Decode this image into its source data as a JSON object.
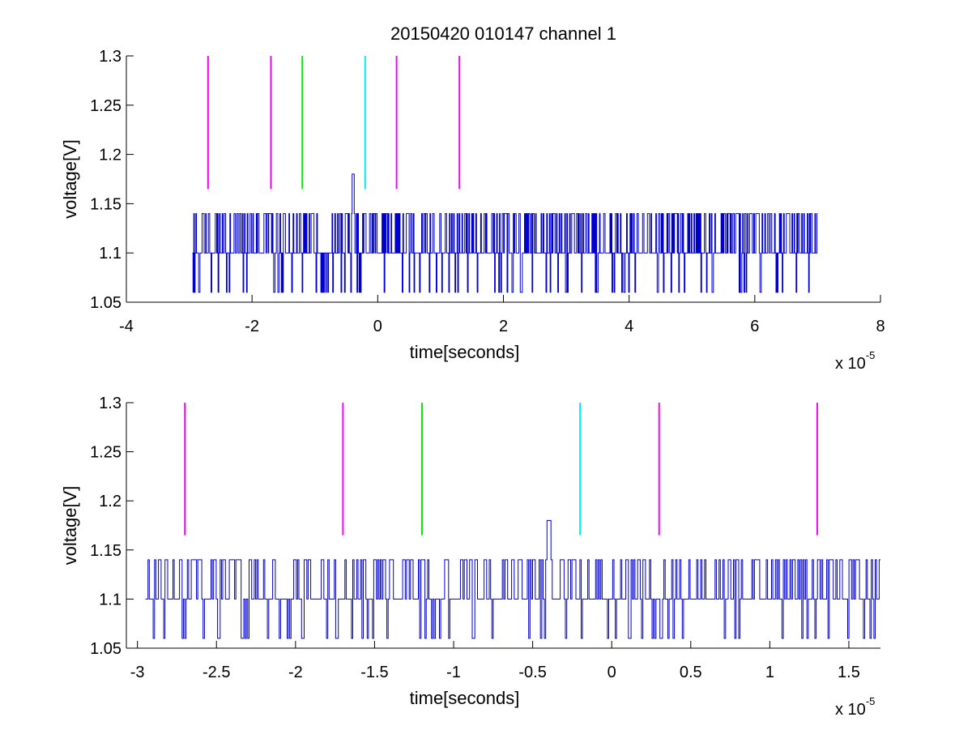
{
  "chart_data": [
    {
      "type": "line",
      "title": "20150420 010147 channel 1",
      "xlabel": "time[seconds]",
      "ylabel": "voltage[V]",
      "x_multiplier": "x 10",
      "x_exponent": "-5",
      "xlim": [
        -4,
        8
      ],
      "ylim": [
        1.05,
        1.3
      ],
      "xticks": [
        -4,
        -2,
        0,
        2,
        4,
        6,
        8
      ],
      "xtick_labels": [
        "-4",
        "-2",
        "0",
        "2",
        "4",
        "6",
        "8"
      ],
      "yticks": [
        1.05,
        1.1,
        1.15,
        1.2,
        1.25,
        1.3
      ],
      "ytick_labels": [
        "1.05",
        "1.1",
        "1.15",
        "1.2",
        "1.25",
        "1.3"
      ],
      "signal": {
        "color": "#0000cc",
        "x_range": [
          -2.95,
          7.0
        ],
        "levels": [
          1.06,
          1.1,
          1.14
        ],
        "baseline": 1.1,
        "peak": {
          "x": -0.4,
          "y": 1.18
        }
      },
      "markers": [
        {
          "x": -2.7,
          "y_range": [
            1.165,
            1.3
          ],
          "color": "#ff00ff"
        },
        {
          "x": -1.7,
          "y_range": [
            1.165,
            1.3
          ],
          "color": "#ff00ff"
        },
        {
          "x": -1.2,
          "y_range": [
            1.165,
            1.3
          ],
          "color": "#00ee00"
        },
        {
          "x": -0.2,
          "y_range": [
            1.165,
            1.3
          ],
          "color": "#00eeee"
        },
        {
          "x": 0.3,
          "y_range": [
            1.165,
            1.3
          ],
          "color": "#ff00ff"
        },
        {
          "x": 1.3,
          "y_range": [
            1.165,
            1.3
          ],
          "color": "#ff00ff"
        }
      ]
    },
    {
      "type": "line",
      "title": "",
      "xlabel": "time[seconds]",
      "ylabel": "voltage[V]",
      "x_multiplier": "x 10",
      "x_exponent": "-5",
      "xlim": [
        -3.07,
        1.7
      ],
      "ylim": [
        1.05,
        1.3
      ],
      "xticks": [
        -3,
        -2.5,
        -2,
        -1.5,
        -1,
        -0.5,
        0,
        0.5,
        1,
        1.5
      ],
      "xtick_labels": [
        "-3",
        "-2.5",
        "-2",
        "-1.5",
        "-1",
        "-0.5",
        "0",
        "0.5",
        "1",
        "1.5"
      ],
      "yticks": [
        1.05,
        1.1,
        1.15,
        1.2,
        1.25,
        1.3
      ],
      "ytick_labels": [
        "1.05",
        "1.1",
        "1.15",
        "1.2",
        "1.25",
        "1.3"
      ],
      "signal": {
        "color": "#0000cc",
        "x_range": [
          -2.95,
          1.7
        ],
        "levels": [
          1.06,
          1.1,
          1.14
        ],
        "baseline": 1.1,
        "peak": {
          "x": -0.4,
          "y": 1.18
        }
      },
      "markers": [
        {
          "x": -2.7,
          "y_range": [
            1.165,
            1.3
          ],
          "color": "#ff00ff"
        },
        {
          "x": -1.7,
          "y_range": [
            1.165,
            1.3
          ],
          "color": "#ff00ff"
        },
        {
          "x": -1.2,
          "y_range": [
            1.165,
            1.3
          ],
          "color": "#00ee00"
        },
        {
          "x": -0.2,
          "y_range": [
            1.165,
            1.3
          ],
          "color": "#00eeee"
        },
        {
          "x": 0.3,
          "y_range": [
            1.165,
            1.3
          ],
          "color": "#ff00ff"
        },
        {
          "x": 1.3,
          "y_range": [
            1.165,
            1.3
          ],
          "color": "#ff00ff"
        }
      ]
    }
  ]
}
